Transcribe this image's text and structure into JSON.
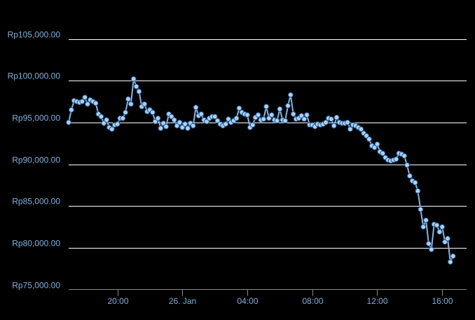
{
  "chart_data": {
    "type": "line",
    "title": "",
    "xlabel": "",
    "ylabel": "",
    "ylim": [
      75000,
      105000
    ],
    "xlim": [
      "2024-01-25T17:00",
      "2024-01-26T17:30"
    ],
    "y_ticks": [
      {
        "value": 75000,
        "label": "Rp75,000.00"
      },
      {
        "value": 80000,
        "label": "Rp80,000.00"
      },
      {
        "value": 85000,
        "label": "Rp85,000.00"
      },
      {
        "value": 90000,
        "label": "Rp90,000.00"
      },
      {
        "value": 95000,
        "label": "Rp95,000.00"
      },
      {
        "value": 100000,
        "label": "Rp100,000.00"
      },
      {
        "value": 105000,
        "label": "Rp105,000.00"
      }
    ],
    "x_ticks": [
      {
        "value": "2024-01-25T20:00",
        "label": "20:00"
      },
      {
        "value": "2024-01-26T00:00",
        "label": "26. Jan"
      },
      {
        "value": "2024-01-26T04:00",
        "label": "04:00"
      },
      {
        "value": "2024-01-26T08:00",
        "label": "08:00"
      },
      {
        "value": "2024-01-26T12:00",
        "label": "12:00"
      },
      {
        "value": "2024-01-26T16:00",
        "label": "16:00"
      }
    ],
    "grid": true,
    "legend": "none",
    "colors": {
      "line": "#8ab4e0",
      "marker_fill": "#a9d2ef",
      "marker_stroke": "#1f4f8f",
      "grid": "#ffffff",
      "tick_label": "#7fb0de",
      "background": "#000000"
    },
    "series": [
      {
        "points": [
          [
            "2024-01-25T17:00",
            95000
          ],
          [
            "2024-01-25T17:10",
            96500
          ],
          [
            "2024-01-25T17:20",
            97600
          ],
          [
            "2024-01-25T17:30",
            97500
          ],
          [
            "2024-01-25T17:40",
            97400
          ],
          [
            "2024-01-25T17:50",
            97500
          ],
          [
            "2024-01-25T18:00",
            98000
          ],
          [
            "2024-01-25T18:10",
            97200
          ],
          [
            "2024-01-25T18:20",
            97700
          ],
          [
            "2024-01-25T18:30",
            97500
          ],
          [
            "2024-01-25T18:40",
            97300
          ],
          [
            "2024-01-25T18:50",
            96000
          ],
          [
            "2024-01-25T19:00",
            95700
          ],
          [
            "2024-01-25T19:10",
            94900
          ],
          [
            "2024-01-25T19:20",
            95300
          ],
          [
            "2024-01-25T19:30",
            94400
          ],
          [
            "2024-01-25T19:40",
            94200
          ],
          [
            "2024-01-25T19:50",
            94700
          ],
          [
            "2024-01-25T20:00",
            94800
          ],
          [
            "2024-01-25T20:10",
            95500
          ],
          [
            "2024-01-25T20:20",
            95500
          ],
          [
            "2024-01-25T20:30",
            96200
          ],
          [
            "2024-01-25T20:40",
            97800
          ],
          [
            "2024-01-25T20:50",
            97200
          ],
          [
            "2024-01-25T21:00",
            100200
          ],
          [
            "2024-01-25T21:10",
            99300
          ],
          [
            "2024-01-25T21:20",
            98700
          ],
          [
            "2024-01-25T21:30",
            96900
          ],
          [
            "2024-01-25T21:40",
            97200
          ],
          [
            "2024-01-25T21:50",
            96300
          ],
          [
            "2024-01-25T22:00",
            96500
          ],
          [
            "2024-01-25T22:10",
            96200
          ],
          [
            "2024-01-25T22:20",
            95100
          ],
          [
            "2024-01-25T22:30",
            95500
          ],
          [
            "2024-01-25T22:40",
            94300
          ],
          [
            "2024-01-25T22:50",
            94900
          ],
          [
            "2024-01-25T23:00",
            94500
          ],
          [
            "2024-01-25T23:10",
            96000
          ],
          [
            "2024-01-25T23:20",
            95700
          ],
          [
            "2024-01-25T23:30",
            95300
          ],
          [
            "2024-01-25T23:40",
            94600
          ],
          [
            "2024-01-25T23:50",
            95000
          ],
          [
            "2024-01-26T00:00",
            94400
          ],
          [
            "2024-01-26T00:10",
            94800
          ],
          [
            "2024-01-26T00:20",
            94300
          ],
          [
            "2024-01-26T00:30",
            94900
          ],
          [
            "2024-01-26T00:40",
            94600
          ],
          [
            "2024-01-26T00:50",
            96800
          ],
          [
            "2024-01-26T01:00",
            95800
          ],
          [
            "2024-01-26T01:10",
            96000
          ],
          [
            "2024-01-26T01:20",
            95300
          ],
          [
            "2024-01-26T01:30",
            95100
          ],
          [
            "2024-01-26T01:40",
            95500
          ],
          [
            "2024-01-26T01:50",
            95700
          ],
          [
            "2024-01-26T02:00",
            95700
          ],
          [
            "2024-01-26T02:10",
            95200
          ],
          [
            "2024-01-26T02:20",
            94800
          ],
          [
            "2024-01-26T02:30",
            94600
          ],
          [
            "2024-01-26T02:40",
            94800
          ],
          [
            "2024-01-26T02:50",
            95400
          ],
          [
            "2024-01-26T03:00",
            95000
          ],
          [
            "2024-01-26T03:10",
            95200
          ],
          [
            "2024-01-26T03:20",
            95500
          ],
          [
            "2024-01-26T03:30",
            96700
          ],
          [
            "2024-01-26T03:40",
            96200
          ],
          [
            "2024-01-26T03:50",
            96000
          ],
          [
            "2024-01-26T04:00",
            95900
          ],
          [
            "2024-01-26T04:10",
            94400
          ],
          [
            "2024-01-26T04:20",
            94700
          ],
          [
            "2024-01-26T04:30",
            95600
          ],
          [
            "2024-01-26T04:40",
            95900
          ],
          [
            "2024-01-26T04:50",
            95300
          ],
          [
            "2024-01-26T05:00",
            95400
          ],
          [
            "2024-01-26T05:10",
            96900
          ],
          [
            "2024-01-26T05:20",
            95500
          ],
          [
            "2024-01-26T05:30",
            95900
          ],
          [
            "2024-01-26T05:40",
            95300
          ],
          [
            "2024-01-26T05:50",
            95200
          ],
          [
            "2024-01-26T06:00",
            96600
          ],
          [
            "2024-01-26T06:10",
            95300
          ],
          [
            "2024-01-26T06:20",
            95200
          ],
          [
            "2024-01-26T06:30",
            97000
          ],
          [
            "2024-01-26T06:40",
            98300
          ],
          [
            "2024-01-26T06:50",
            96000
          ],
          [
            "2024-01-26T07:00",
            95400
          ],
          [
            "2024-01-26T07:10",
            95500
          ],
          [
            "2024-01-26T07:20",
            95800
          ],
          [
            "2024-01-26T07:30",
            95400
          ],
          [
            "2024-01-26T07:40",
            95900
          ],
          [
            "2024-01-26T07:50",
            94700
          ],
          [
            "2024-01-26T08:00",
            94700
          ],
          [
            "2024-01-26T08:10",
            94500
          ],
          [
            "2024-01-26T08:20",
            94800
          ],
          [
            "2024-01-26T08:30",
            94700
          ],
          [
            "2024-01-26T08:40",
            94800
          ],
          [
            "2024-01-26T08:50",
            95000
          ],
          [
            "2024-01-26T09:00",
            95500
          ],
          [
            "2024-01-26T09:10",
            95400
          ],
          [
            "2024-01-26T09:20",
            94600
          ],
          [
            "2024-01-26T09:30",
            95600
          ],
          [
            "2024-01-26T09:40",
            95000
          ],
          [
            "2024-01-26T09:50",
            94900
          ],
          [
            "2024-01-26T10:00",
            94900
          ],
          [
            "2024-01-26T10:10",
            95000
          ],
          [
            "2024-01-26T10:20",
            94200
          ],
          [
            "2024-01-26T10:30",
            94700
          ],
          [
            "2024-01-26T10:40",
            94600
          ],
          [
            "2024-01-26T10:50",
            94400
          ],
          [
            "2024-01-26T11:00",
            94200
          ],
          [
            "2024-01-26T11:10",
            93700
          ],
          [
            "2024-01-26T11:20",
            93400
          ],
          [
            "2024-01-26T11:30",
            93000
          ],
          [
            "2024-01-26T11:40",
            92200
          ],
          [
            "2024-01-26T11:50",
            92000
          ],
          [
            "2024-01-26T12:00",
            92400
          ],
          [
            "2024-01-26T12:10",
            91500
          ],
          [
            "2024-01-26T12:20",
            91300
          ],
          [
            "2024-01-26T12:30",
            90800
          ],
          [
            "2024-01-26T12:40",
            90500
          ],
          [
            "2024-01-26T12:50",
            90400
          ],
          [
            "2024-01-26T13:00",
            90500
          ],
          [
            "2024-01-26T13:10",
            90600
          ],
          [
            "2024-01-26T13:20",
            91300
          ],
          [
            "2024-01-26T13:30",
            91200
          ],
          [
            "2024-01-26T13:40",
            91000
          ],
          [
            "2024-01-26T13:50",
            89900
          ],
          [
            "2024-01-26T14:00",
            88600
          ],
          [
            "2024-01-26T14:10",
            88000
          ],
          [
            "2024-01-26T14:20",
            87800
          ],
          [
            "2024-01-26T14:30",
            86800
          ],
          [
            "2024-01-26T14:40",
            84600
          ],
          [
            "2024-01-26T14:50",
            82500
          ],
          [
            "2024-01-26T15:00",
            83300
          ],
          [
            "2024-01-26T15:10",
            80500
          ],
          [
            "2024-01-26T15:20",
            79800
          ],
          [
            "2024-01-26T15:30",
            82800
          ],
          [
            "2024-01-26T15:40",
            82700
          ],
          [
            "2024-01-26T15:50",
            81900
          ],
          [
            "2024-01-26T16:00",
            82500
          ],
          [
            "2024-01-26T16:10",
            80700
          ],
          [
            "2024-01-26T16:20",
            81100
          ],
          [
            "2024-01-26T16:30",
            78300
          ],
          [
            "2024-01-26T16:40",
            79000
          ]
        ]
      }
    ]
  }
}
